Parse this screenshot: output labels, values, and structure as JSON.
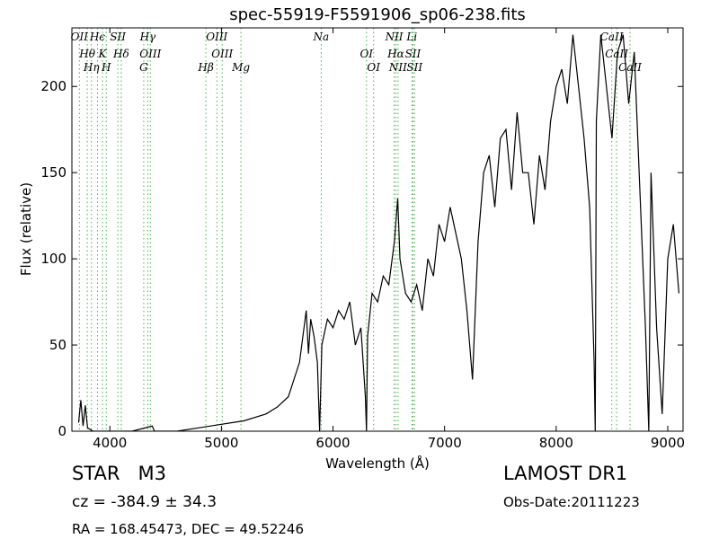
{
  "chart_data": {
    "type": "line",
    "title": "spec-55919-F5591906_sp06-238.fits",
    "x_label": "Wavelength (Å)",
    "y_label": "Flux (relative)",
    "xlim": [
      3660,
      9137
    ],
    "ylim": [
      0,
      234
    ],
    "xticks": [
      4000,
      5000,
      6000,
      7000,
      8000,
      9000
    ],
    "yticks": [
      0,
      50,
      100,
      150,
      200
    ],
    "grid": false,
    "x": [
      3720,
      3740,
      3760,
      3780,
      3800,
      3850,
      4000,
      4200,
      4380,
      4400,
      4600,
      4800,
      5000,
      5200,
      5400,
      5500,
      5600,
      5650,
      5700,
      5730,
      5760,
      5780,
      5800,
      5830,
      5860,
      5880,
      5900,
      5950,
      6000,
      6050,
      6100,
      6150,
      6200,
      6250,
      6290,
      6300,
      6310,
      6350,
      6400,
      6450,
      6500,
      6550,
      6580,
      6600,
      6650,
      6700,
      6750,
      6800,
      6850,
      6900,
      6950,
      7000,
      7050,
      7100,
      7150,
      7200,
      7250,
      7300,
      7350,
      7400,
      7450,
      7500,
      7550,
      7600,
      7650,
      7700,
      7750,
      7800,
      7850,
      7900,
      7950,
      8000,
      8050,
      8100,
      8150,
      8200,
      8250,
      8300,
      8340,
      8350,
      8360,
      8400,
      8450,
      8500,
      8550,
      8600,
      8650,
      8700,
      8750,
      8800,
      8830,
      8850,
      8900,
      8950,
      9000,
      9050,
      9100
    ],
    "series": [
      {
        "name": "flux",
        "color": "#000000",
        "values": [
          5,
          18,
          3,
          15,
          2,
          0,
          0,
          0,
          3,
          0,
          0,
          2,
          4,
          6,
          10,
          14,
          20,
          30,
          40,
          55,
          70,
          45,
          65,
          55,
          40,
          0,
          50,
          65,
          60,
          70,
          65,
          75,
          50,
          60,
          20,
          0,
          55,
          80,
          75,
          90,
          85,
          110,
          135,
          100,
          80,
          75,
          85,
          70,
          100,
          90,
          120,
          110,
          130,
          115,
          100,
          70,
          30,
          110,
          150,
          160,
          130,
          170,
          175,
          140,
          185,
          150,
          150,
          120,
          160,
          140,
          180,
          200,
          210,
          190,
          230,
          200,
          170,
          130,
          40,
          0,
          180,
          230,
          200,
          170,
          220,
          230,
          190,
          220,
          140,
          60,
          0,
          150,
          60,
          10,
          100,
          120,
          80
        ]
      }
    ],
    "lines": {
      "color": "#4caf50",
      "x": [
        3727,
        3798,
        3835,
        3889,
        3934,
        3968,
        4072,
        4102,
        4304,
        4340,
        4363,
        4861,
        4959,
        5007,
        5175,
        5894,
        6300,
        6364,
        6548,
        6563,
        6583,
        6707,
        6716,
        6731,
        8498,
        8542,
        8662
      ],
      "labels": [
        "OII",
        "Hθ",
        "Hη",
        "Hϵ",
        "K",
        "H",
        "SII",
        "Hδ",
        "G",
        "Hγ",
        "OIII",
        "Hβ",
        "OIII",
        "OIII",
        "Mg",
        "Na",
        "OI",
        "OI",
        "NII",
        "Hα",
        "NII",
        "Li",
        "SII",
        "SII",
        "CaII",
        "CaII",
        "CaII"
      ]
    },
    "annotations": {
      "object": "STAR   M3",
      "survey": "LAMOST DR1",
      "cz": "cz = -384.9 ± 34.3",
      "date": "Obs-Date:20111223",
      "coords": "RA = 168.45473, DEC = 49.52246"
    }
  }
}
